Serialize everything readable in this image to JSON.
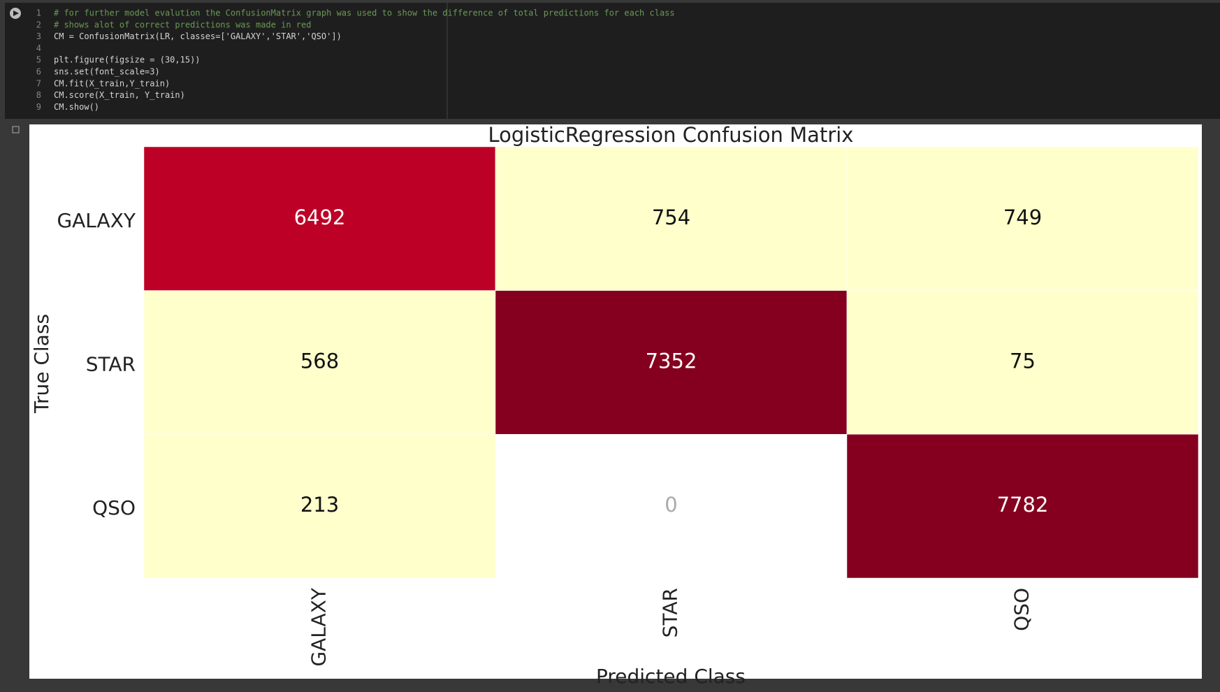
{
  "code": {
    "line_numbers": [
      1,
      2,
      3,
      4,
      5,
      6,
      7,
      8,
      9
    ],
    "lines": [
      "# for further model evalution the ConfusionMatrix graph was used to show the difference of total predictions for each class",
      "# shows alot of correct predictions was made in red",
      "CM = ConfusionMatrix(LR, classes=['GALAXY','STAR','QSO'])",
      "",
      "plt.figure(figsize = (30,15))",
      "sns.set(font_scale=3)",
      "CM.fit(X_train,Y_train)",
      "CM.score(X_train, Y_train)",
      "CM.show()"
    ]
  },
  "chart_data": {
    "type": "heatmap",
    "title": "LogisticRegression Confusion Matrix",
    "x_label": "Predicted Class",
    "y_label": "True Class",
    "x_categories": [
      "GALAXY",
      "STAR",
      "QSO"
    ],
    "y_categories": [
      "GALAXY",
      "STAR",
      "QSO"
    ],
    "values": [
      [
        6492,
        754,
        749
      ],
      [
        568,
        7352,
        75
      ],
      [
        213,
        0,
        7782
      ]
    ],
    "colormap": [
      "#ffffcc",
      "#ffeda0",
      "#fed976",
      "#feb24c",
      "#fd8d3c",
      "#fc4e2a",
      "#e31a1c",
      "#bd0026",
      "#85001f"
    ],
    "zero_color": "#ffffff"
  }
}
